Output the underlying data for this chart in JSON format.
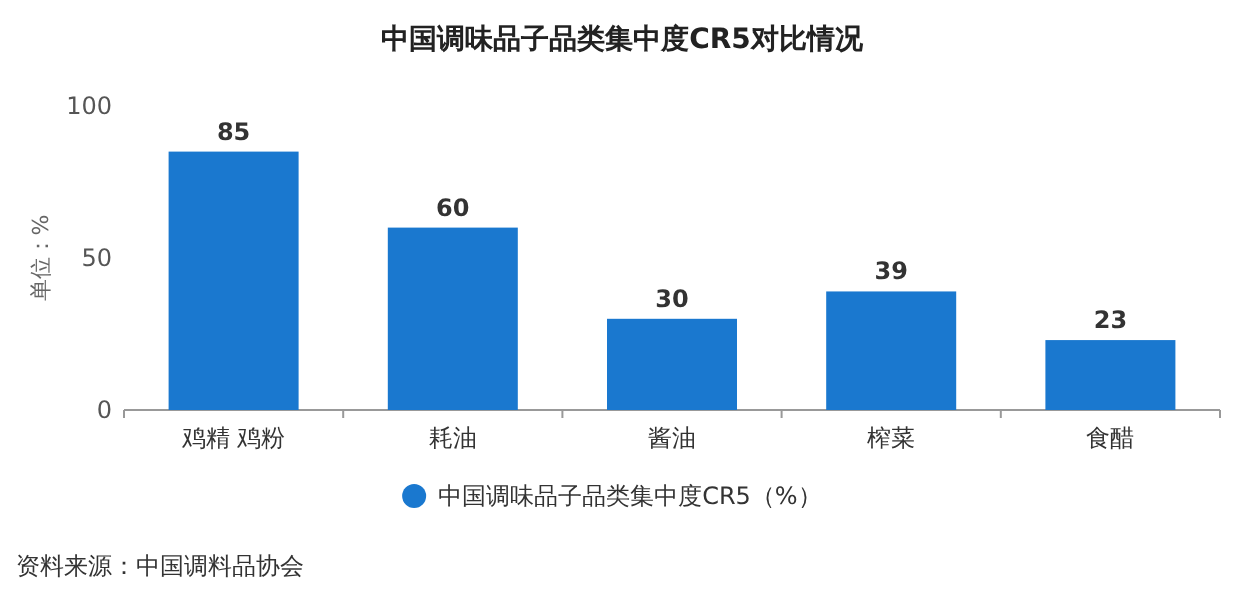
{
  "chart_data": {
    "type": "bar",
    "title": "中国调味品子品类集中度CR5对比情况",
    "ylabel": "单位：%",
    "categories": [
      "鸡精 鸡粉",
      "耗油",
      "酱油",
      "榨菜",
      "食醋"
    ],
    "series": [
      {
        "name": "中国调味品子品类集中度CR5（%）",
        "color": "#1a78cf",
        "values": [
          85,
          60,
          30,
          39,
          23
        ]
      }
    ],
    "ylim": [
      0,
      100
    ],
    "yticks": [
      0,
      50,
      100
    ],
    "data_labels": true,
    "legend": "bottom",
    "annotations": [
      "资料来源：中国调料品协会"
    ]
  }
}
